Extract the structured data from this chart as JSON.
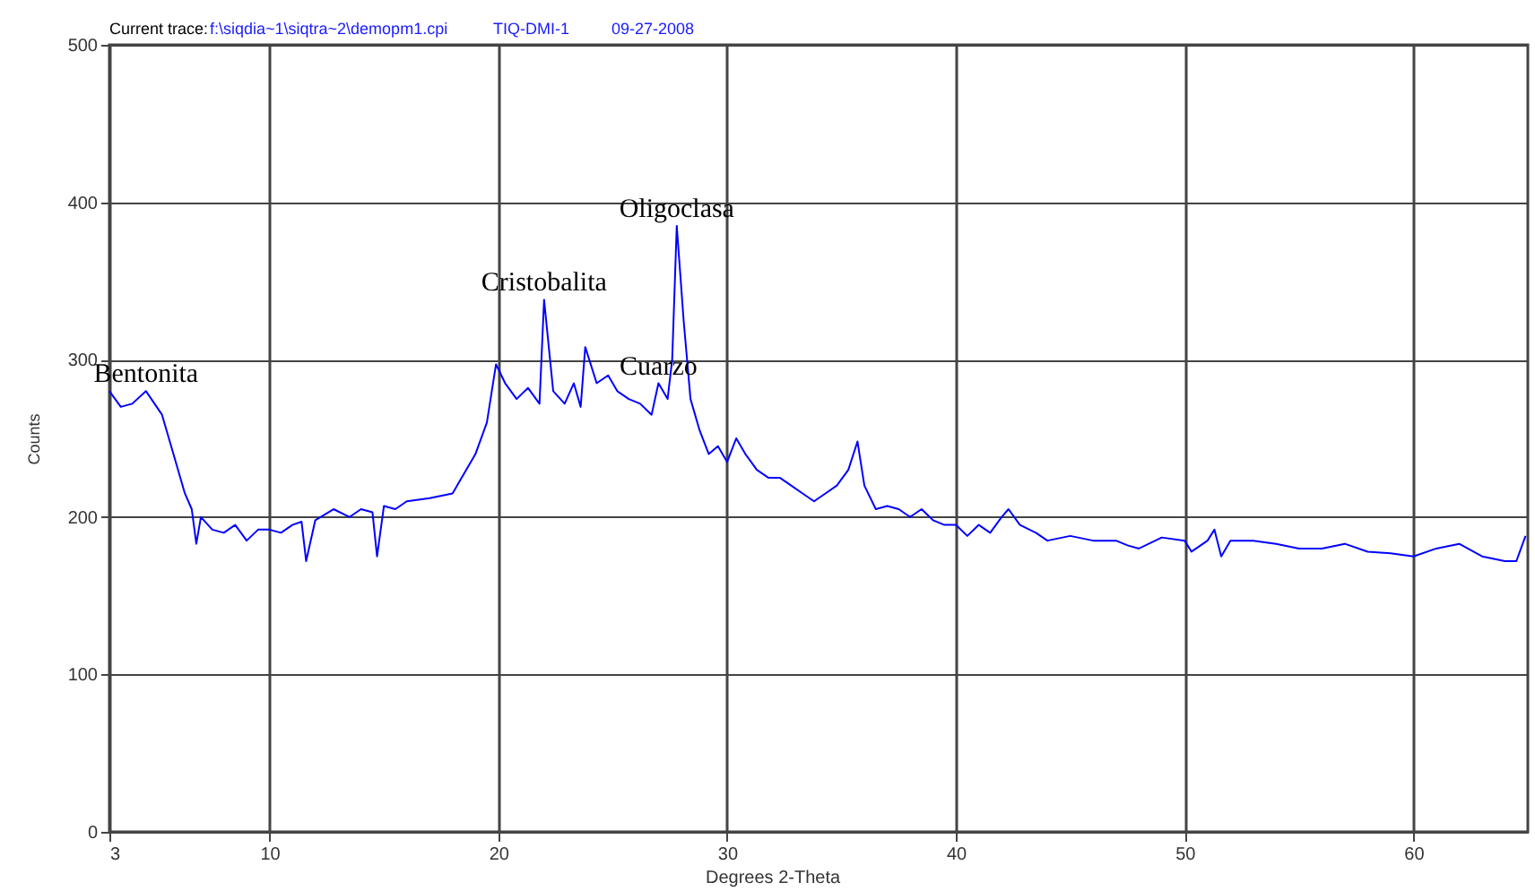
{
  "chart_data": {
    "type": "line",
    "annotations": [
      "Current trace:",
      "f:\\siqdia~1\\siqtra~2\\demopm1.cpi",
      "TIQ-DMI-1",
      "09-27-2008",
      {
        "text": "Bentonita",
        "x": 4.6,
        "y": 280
      },
      {
        "text": "Cristobalita",
        "x": 22.0,
        "y": 338
      },
      {
        "text": "Cuarzo",
        "x": 27,
        "y": 285
      },
      {
        "text": "Oligoclasa",
        "x": 27.8,
        "y": 385
      }
    ],
    "xlabel": "Degrees 2-Theta",
    "ylabel": "Counts",
    "xlim": [
      3,
      65
    ],
    "ylim": [
      0,
      500
    ],
    "xticks": [
      3,
      10,
      20,
      30,
      40,
      50,
      60
    ],
    "yticks": [
      0,
      100,
      200,
      300,
      400,
      500
    ],
    "grid": true,
    "marker": "none",
    "line_style": "solid",
    "series": [
      {
        "color": "#0000ff",
        "x": [
          3,
          3.5,
          4,
          4.6,
          5.3,
          5.8,
          6.3,
          6.6,
          6.8,
          7,
          7.5,
          8,
          8.5,
          9,
          9.5,
          10,
          10.5,
          11,
          11.4,
          11.6,
          12,
          12.8,
          13.5,
          14,
          14.5,
          14.7,
          15,
          15.5,
          16,
          17,
          18,
          19,
          19.5,
          19.9,
          20.3,
          20.8,
          21.3,
          21.8,
          22.0,
          22.4,
          22.9,
          23.3,
          23.6,
          23.8,
          24.3,
          24.8,
          25.2,
          25.7,
          26.2,
          26.7,
          27,
          27.4,
          27.6,
          27.8,
          28.1,
          28.4,
          28.8,
          29.2,
          29.6,
          30,
          30.4,
          30.8,
          31.3,
          31.8,
          32.3,
          32.8,
          33.3,
          33.8,
          34.3,
          34.8,
          35.3,
          35.7,
          36,
          36.5,
          37,
          37.5,
          38,
          38.5,
          39,
          39.5,
          40,
          40.5,
          41,
          41.5,
          42,
          42.3,
          42.8,
          43.5,
          44,
          45,
          46,
          47,
          47.5,
          48,
          49,
          50,
          50.3,
          51,
          51.3,
          51.6,
          52,
          53,
          54,
          55,
          56,
          57,
          58,
          59,
          60,
          61,
          62,
          63,
          64,
          64.5,
          64.9
        ],
        "values": [
          280,
          270,
          272,
          280,
          265,
          240,
          215,
          205,
          183,
          200,
          192,
          190,
          195,
          185,
          192,
          192,
          190,
          195,
          197,
          172,
          198,
          205,
          200,
          205,
          203,
          175,
          207,
          205,
          210,
          212,
          215,
          240,
          260,
          297,
          285,
          275,
          282,
          272,
          338,
          280,
          272,
          285,
          270,
          308,
          285,
          290,
          280,
          275,
          272,
          265,
          285,
          275,
          300,
          385,
          325,
          275,
          255,
          240,
          245,
          235,
          250,
          240,
          230,
          225,
          225,
          220,
          215,
          210,
          215,
          220,
          230,
          248,
          220,
          205,
          207,
          205,
          200,
          205,
          198,
          195,
          195,
          188,
          195,
          190,
          200,
          205,
          195,
          190,
          185,
          188,
          185,
          185,
          182,
          180,
          187,
          185,
          178,
          185,
          192,
          175,
          185,
          185,
          183,
          180,
          180,
          183,
          178,
          177,
          175,
          180,
          183,
          175,
          172,
          172,
          188
        ]
      }
    ]
  }
}
